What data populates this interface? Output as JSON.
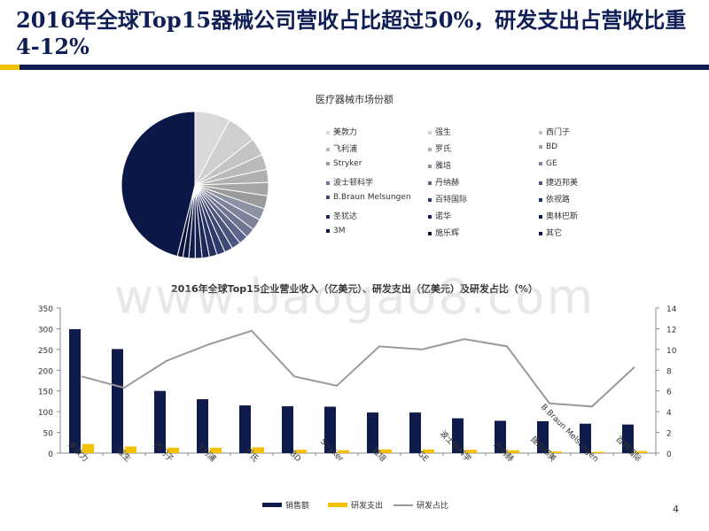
{
  "slide": {
    "title": "2016年全球Top15器械公司营收占比超过50%，研发支出占营收比重4-12%",
    "page_number": "4",
    "watermark": "www.baogao8.com",
    "colors": {
      "navy": "#0e1b4c",
      "gold": "#f2c100",
      "gray_line": "#9a9a9a"
    }
  },
  "chart_data": [
    {
      "type": "pie",
      "title": "医疗器械市场份额",
      "legend_placement": "right",
      "slices": [
        {
          "label": "美敦力",
          "value": 7.8,
          "color": "#d9d9d9"
        },
        {
          "label": "强生",
          "value": 6.5,
          "color": "#cfcfcf"
        },
        {
          "label": "西门子",
          "value": 3.9,
          "color": "#c4c4c4"
        },
        {
          "label": "飞利浦",
          "value": 3.3,
          "color": "#bababa"
        },
        {
          "label": "罗氏",
          "value": 2.9,
          "color": "#b0b0b0"
        },
        {
          "label": "BD",
          "value": 2.9,
          "color": "#a5a5a5"
        },
        {
          "label": "Stryker",
          "value": 2.9,
          "color": "#9b9b9b"
        },
        {
          "label": "雅培",
          "value": 2.6,
          "color": "#8e93a3"
        },
        {
          "label": "GE",
          "value": 2.5,
          "color": "#7d849a"
        },
        {
          "label": "波士顿科学",
          "value": 2.1,
          "color": "#6d7591"
        },
        {
          "label": "丹纳赫",
          "value": 2.0,
          "color": "#5d6688"
        },
        {
          "label": "捷迈邦美",
          "value": 2.0,
          "color": "#4d577e"
        },
        {
          "label": "B.Braun Melsungen",
          "value": 1.8,
          "color": "#3d4875"
        },
        {
          "label": "百特国际",
          "value": 1.8,
          "color": "#2e3a6b"
        },
        {
          "label": "依视路",
          "value": 1.7,
          "color": "#253163"
        },
        {
          "label": "圣犹达",
          "value": 1.6,
          "color": "#1c2859"
        },
        {
          "label": "诺华",
          "value": 1.5,
          "color": "#152151"
        },
        {
          "label": "奥林巴斯",
          "value": 1.4,
          "color": "#101b49"
        },
        {
          "label": "3M",
          "value": 1.3,
          "color": "#0c1642"
        },
        {
          "label": "施乐辉",
          "value": 1.2,
          "color": "#09123b"
        },
        {
          "label": "其它",
          "value": 46.0,
          "color": "#0b1747"
        }
      ]
    },
    {
      "type": "bar",
      "title": "2016年全球Top15企业营业收入（亿美元）、研发支出（亿美元）及研发占比（%）",
      "categories": [
        "美敦力",
        "强生",
        "西门子",
        "飞利浦",
        "罗氏",
        "BD",
        "Stryker",
        "雅培",
        "GE",
        "波士顿科学",
        "丹纳赫",
        "捷迈邦美",
        "B.Braun Melsungen",
        "百特国际"
      ],
      "series": [
        {
          "name": "销售额",
          "type": "bar",
          "axis": "left",
          "color": "#0e1b4c",
          "values": [
            299,
            251,
            150,
            130,
            115,
            113,
            112,
            98,
            98,
            84,
            78,
            77,
            71,
            69
          ]
        },
        {
          "name": "研发支出",
          "type": "bar",
          "axis": "left",
          "color": "#f2c100",
          "values": [
            22,
            16,
            13,
            13,
            14,
            8,
            7,
            9,
            9,
            8,
            7,
            4,
            3,
            5
          ]
        },
        {
          "name": "研发占比",
          "type": "line",
          "axis": "right",
          "color": "#9a9a9a",
          "values": [
            7.4,
            6.3,
            8.9,
            10.5,
            11.8,
            7.4,
            6.5,
            10.3,
            10.0,
            11.0,
            10.3,
            4.8,
            4.5,
            8.3
          ]
        }
      ],
      "y_left": {
        "min": 0,
        "max": 350,
        "ticks": [
          0,
          50,
          100,
          150,
          200,
          250,
          300,
          350
        ]
      },
      "y_right": {
        "min": 0,
        "max": 14,
        "ticks": [
          0,
          2,
          4,
          6,
          8,
          10,
          12,
          14
        ]
      },
      "legend_placement": "bottom"
    }
  ]
}
